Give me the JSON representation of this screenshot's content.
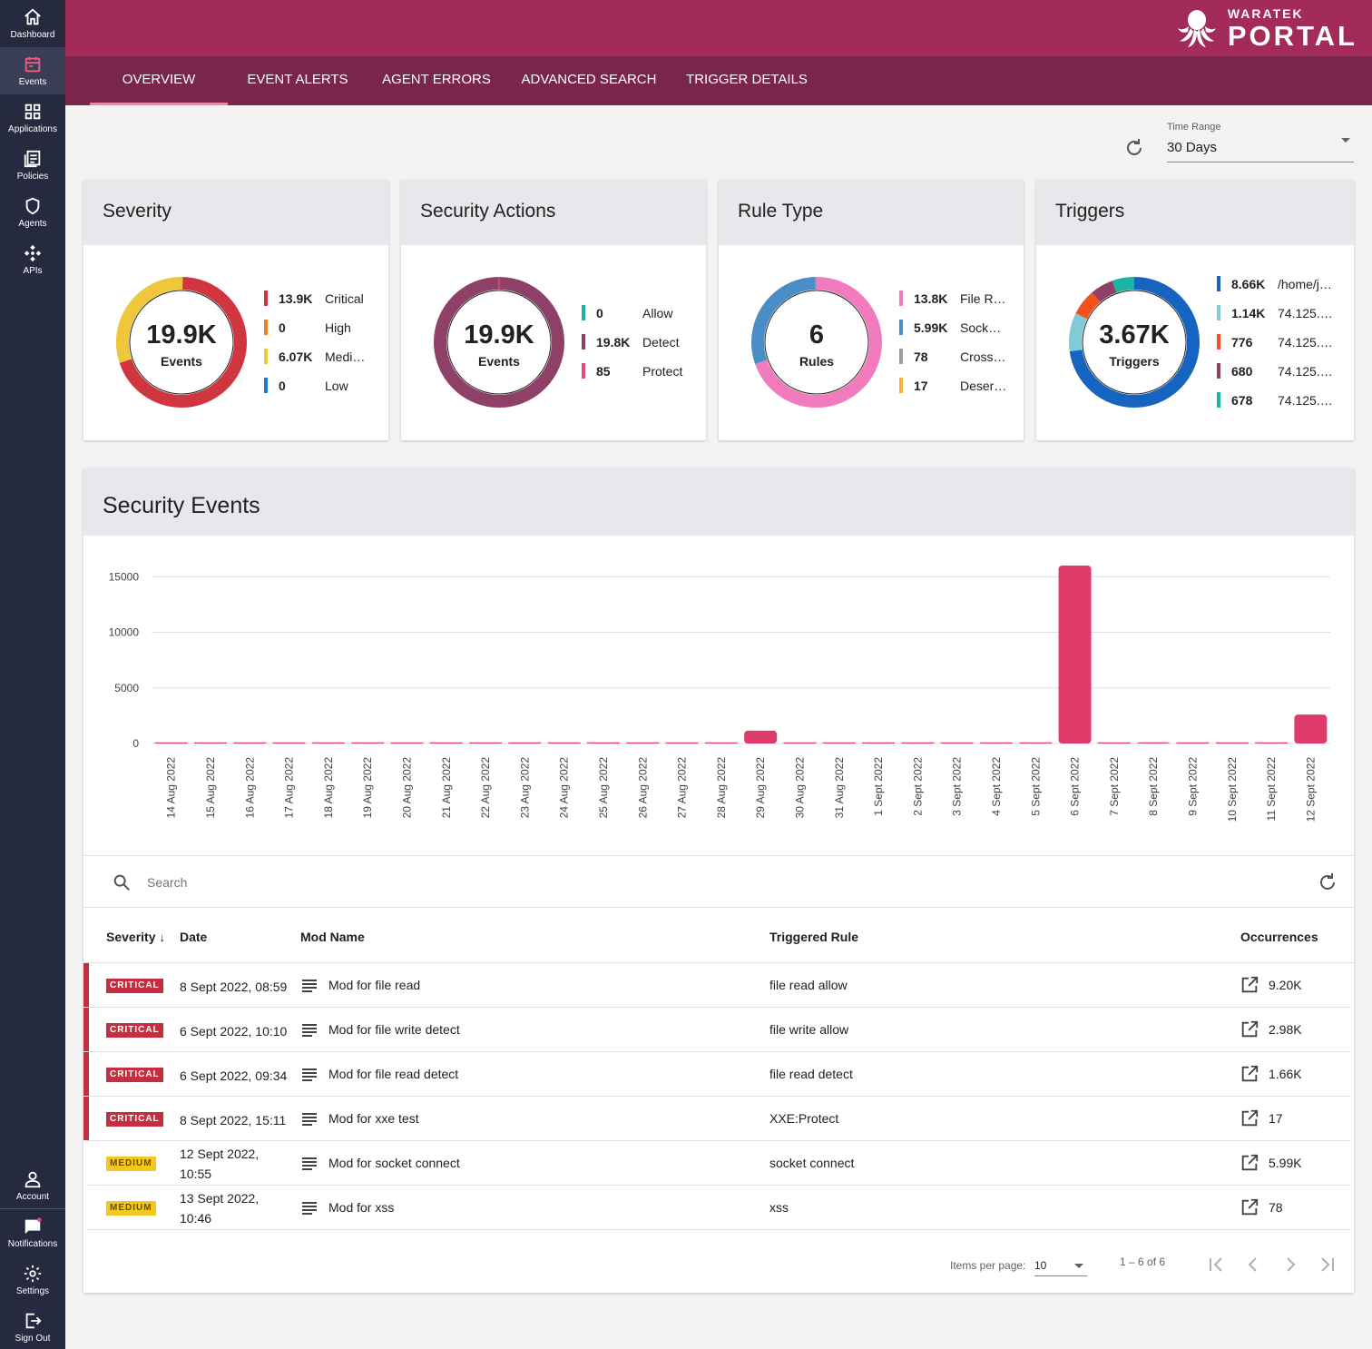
{
  "sidebar": {
    "items": [
      {
        "label": "Dashboard",
        "icon": "home-icon"
      },
      {
        "label": "Events",
        "icon": "calendar-icon"
      },
      {
        "label": "Applications",
        "icon": "grid-icon"
      },
      {
        "label": "Policies",
        "icon": "document-icon"
      },
      {
        "label": "Agents",
        "icon": "shield-icon"
      },
      {
        "label": "APIs",
        "icon": "api-icon"
      }
    ],
    "bottom_items": [
      {
        "label": "Account",
        "icon": "person-icon"
      },
      {
        "label": "Notifications",
        "icon": "chat-icon"
      },
      {
        "label": "Settings",
        "icon": "gear-icon"
      },
      {
        "label": "Sign Out",
        "icon": "logout-icon"
      }
    ],
    "active": "Events"
  },
  "header": {
    "brand_top": "WARATEK",
    "brand_bottom": "PORTAL",
    "tabs": [
      "OVERVIEW",
      "EVENT ALERTS",
      "AGENT ERRORS",
      "ADVANCED SEARCH",
      "TRIGGER DETAILS"
    ],
    "active_tab": "OVERVIEW"
  },
  "time_range": {
    "label": "Time Range",
    "value": "30 Days"
  },
  "colors": {
    "critical": "#d03640",
    "high": "#f47b20",
    "medium": "#f0c63b",
    "low": "#1f78d1",
    "allow": "#1ab3a6",
    "detect": "#8e4068",
    "protect": "#e6457d",
    "file": "#f27bbd",
    "socket": "#4a8ec8",
    "cross": "#9e9e9e",
    "deser": "#f3b440",
    "bar": "#de3a6a"
  },
  "cards": [
    {
      "title": "Severity",
      "center_value": "19.9K",
      "center_label": "Events",
      "legend": [
        {
          "value": "13.9K",
          "name": "Critical",
          "color": "#d03640"
        },
        {
          "value": "0",
          "name": "High",
          "color": "#f47b20"
        },
        {
          "value": "6.07K",
          "name": "Medi…",
          "color": "#f0c63b"
        },
        {
          "value": "0",
          "name": "Low",
          "color": "#1f78d1"
        }
      ],
      "slices": [
        13900,
        0,
        6070,
        0
      ]
    },
    {
      "title": "Security Actions",
      "center_value": "19.9K",
      "center_label": "Events",
      "legend": [
        {
          "value": "0",
          "name": "Allow",
          "color": "#1ab3a6"
        },
        {
          "value": "19.8K",
          "name": "Detect",
          "color": "#8e4068"
        },
        {
          "value": "85",
          "name": "Protect",
          "color": "#e6457d"
        }
      ],
      "slices": [
        0,
        19800,
        85
      ]
    },
    {
      "title": "Rule Type",
      "center_value": "6",
      "center_label": "Rules",
      "legend": [
        {
          "value": "13.8K",
          "name": "File R…",
          "color": "#f27bbd"
        },
        {
          "value": "5.99K",
          "name": "Sock…",
          "color": "#4a8ec8"
        },
        {
          "value": "78",
          "name": "Cross…",
          "color": "#9e9e9e"
        },
        {
          "value": "17",
          "name": "Deser…",
          "color": "#f3b440"
        }
      ],
      "slices": [
        13800,
        5990,
        78,
        17
      ]
    },
    {
      "title": "Triggers",
      "center_value": "3.67K",
      "center_label": "Triggers",
      "legend": [
        {
          "value": "8.66K",
          "name": "/home/j…",
          "color": "#1565c0"
        },
        {
          "value": "1.14K",
          "name": "74.125.…",
          "color": "#80cbd6"
        },
        {
          "value": "776",
          "name": "74.125.…",
          "color": "#f4511e"
        },
        {
          "value": "680",
          "name": "74.125.…",
          "color": "#8e4068"
        },
        {
          "value": "678",
          "name": "74.125.…",
          "color": "#1ab3a6"
        }
      ],
      "slices": [
        8660,
        1140,
        776,
        680,
        678
      ]
    }
  ],
  "events": {
    "title": "Security Events",
    "search_placeholder": "Search",
    "columns": [
      "Severity",
      "Date",
      "Mod Name",
      "Triggered Rule",
      "Occurrences"
    ],
    "rows": [
      {
        "severity": "CRITICAL",
        "date": "8 Sept 2022, 08:59",
        "mod": "Mod for file read",
        "rule": "file read allow",
        "occurrences": "9.20K"
      },
      {
        "severity": "CRITICAL",
        "date": "6 Sept 2022, 10:10",
        "mod": "Mod for file write detect",
        "rule": "file write allow",
        "occurrences": "2.98K"
      },
      {
        "severity": "CRITICAL",
        "date": "6 Sept 2022, 09:34",
        "mod": "Mod for file read detect",
        "rule": "file read detect",
        "occurrences": "1.66K"
      },
      {
        "severity": "CRITICAL",
        "date": "8 Sept 2022, 15:11",
        "mod": "Mod for xxe test",
        "rule": "XXE:Protect",
        "occurrences": "17"
      },
      {
        "severity": "MEDIUM",
        "date": "12 Sept 2022, 10:55",
        "mod": "Mod for socket connect",
        "rule": "socket connect",
        "occurrences": "5.99K"
      },
      {
        "severity": "MEDIUM",
        "date": "13 Sept 2022, 10:46",
        "mod": "Mod for xss",
        "rule": "xss",
        "occurrences": "78"
      }
    ],
    "paginator": {
      "label": "Items per page:",
      "page_size": "10",
      "range": "1 – 6 of 6"
    }
  },
  "chart_data": {
    "type": "bar",
    "categories": [
      "14 Aug 2022",
      "15 Aug 2022",
      "16 Aug 2022",
      "17 Aug 2022",
      "18 Aug 2022",
      "19 Aug 2022",
      "20 Aug 2022",
      "21 Aug 2022",
      "22 Aug 2022",
      "23 Aug 2022",
      "24 Aug 2022",
      "25 Aug 2022",
      "26 Aug 2022",
      "27 Aug 2022",
      "28 Aug 2022",
      "29 Aug 2022",
      "30 Aug 2022",
      "31 Aug 2022",
      "1 Sept 2022",
      "2 Sept 2022",
      "3 Sept 2022",
      "4 Sept 2022",
      "5 Sept 2022",
      "6 Sept 2022",
      "7 Sept 2022",
      "8 Sept 2022",
      "9 Sept 2022",
      "10 Sept 2022",
      "11 Sept 2022",
      "12 Sept 2022"
    ],
    "values": [
      0,
      0,
      0,
      0,
      0,
      0,
      0,
      0,
      0,
      0,
      0,
      0,
      0,
      0,
      0,
      1150,
      0,
      0,
      0,
      0,
      0,
      0,
      0,
      16000,
      0,
      80,
      0,
      0,
      0,
      2600
    ],
    "yticks": [
      0,
      5000,
      10000,
      15000
    ],
    "ylim": [
      0,
      16000
    ],
    "grid": true
  }
}
